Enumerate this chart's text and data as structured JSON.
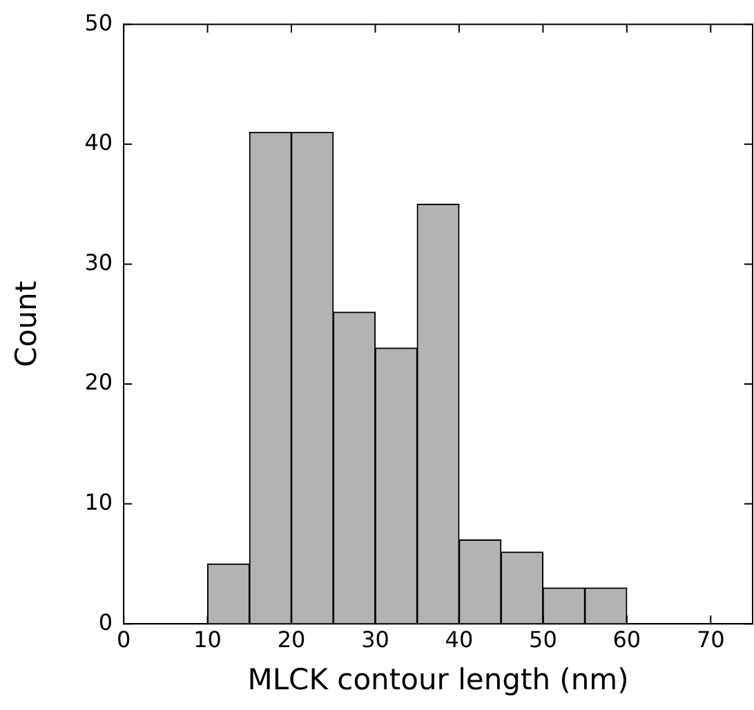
{
  "chart_data": {
    "type": "histogram",
    "xlabel": "MLCK contour length (nm)",
    "ylabel": "Count",
    "bins": [
      10,
      15,
      20,
      25,
      30,
      35,
      40,
      45,
      50,
      55,
      60
    ],
    "values": [
      5,
      41,
      41,
      26,
      23,
      35,
      7,
      6,
      3,
      3
    ],
    "color": "#b3b3b3",
    "xlim": [
      0,
      75
    ],
    "xticks": [
      0,
      10,
      20,
      30,
      40,
      50,
      60,
      70
    ],
    "ylim": [
      0,
      50
    ],
    "yticks": [
      0,
      10,
      20,
      30,
      40,
      50
    ],
    "grid": false,
    "legend": false
  }
}
